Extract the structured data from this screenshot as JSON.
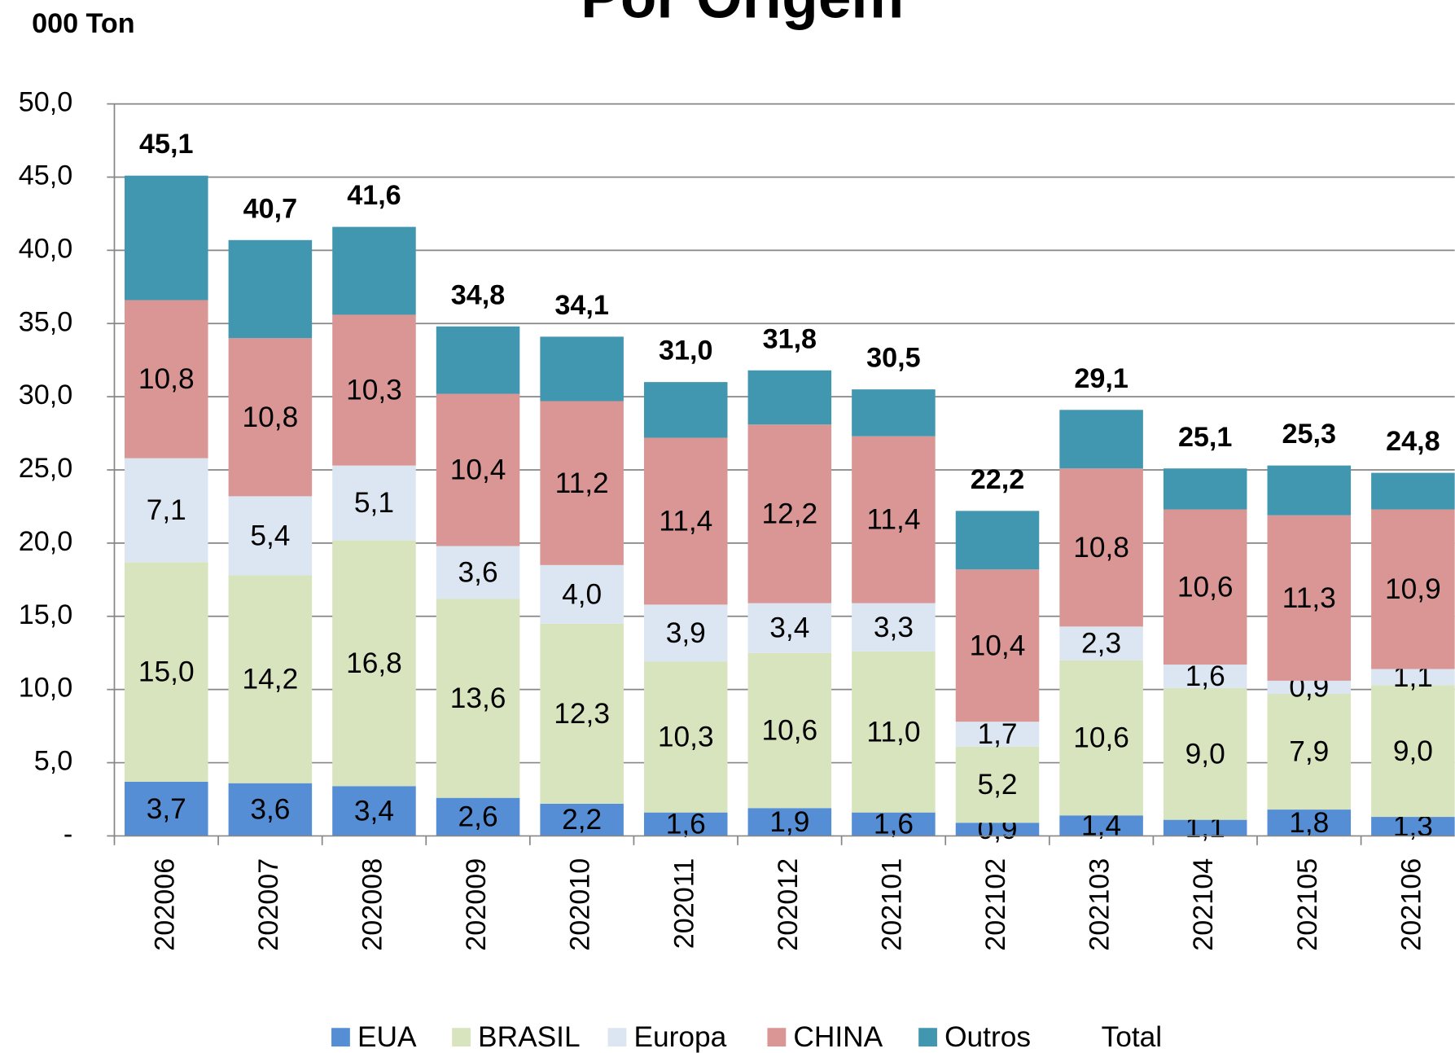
{
  "chart_data": {
    "type": "stacked_bar",
    "title": "Por Origem",
    "y_axis_label": "000  Ton",
    "categories": [
      "202006",
      "202007",
      "202008",
      "202009",
      "202010",
      "202011",
      "202012",
      "202101",
      "202102",
      "202103",
      "202104",
      "202105",
      "202106"
    ],
    "series": [
      {
        "name": "EUA",
        "color": "#558ed5",
        "values": [
          3.7,
          3.6,
          3.4,
          2.6,
          2.2,
          1.6,
          1.9,
          1.6,
          0.9,
          1.4,
          1.1,
          1.8,
          1.3
        ],
        "value_labels": [
          "3,7",
          "3,6",
          "3,4",
          "2,6",
          "2,2",
          "1,6",
          "1,9",
          "1,6",
          "0,9",
          "1,4",
          "1,1",
          "1,8",
          "1,3"
        ]
      },
      {
        "name": "BRASIL",
        "color": "#d7e4bd",
        "values": [
          15.0,
          14.2,
          16.8,
          13.6,
          12.3,
          10.3,
          10.6,
          11.0,
          5.2,
          10.6,
          9.0,
          7.9,
          9.0
        ],
        "value_labels": [
          "15,0",
          "14,2",
          "16,8",
          "13,6",
          "12,3",
          "10,3",
          "10,6",
          "11,0",
          "5,2",
          "10,6",
          "9,0",
          "7,9",
          "9,0"
        ]
      },
      {
        "name": "Europa",
        "color": "#dce6f2",
        "values": [
          7.1,
          5.4,
          5.1,
          3.6,
          4.0,
          3.9,
          3.4,
          3.3,
          1.7,
          2.3,
          1.6,
          0.9,
          1.1
        ],
        "value_labels": [
          "7,1",
          "5,4",
          "5,1",
          "3,6",
          "4,0",
          "3,9",
          "3,4",
          "3,3",
          "1,7",
          "2,3",
          "1,6",
          "0,9",
          "1,1"
        ]
      },
      {
        "name": "CHINA",
        "color": "#d99694",
        "values": [
          10.8,
          10.8,
          10.3,
          10.4,
          11.2,
          11.4,
          12.2,
          11.4,
          10.4,
          10.8,
          10.6,
          11.3,
          10.9
        ],
        "value_labels": [
          "10,8",
          "10,8",
          "10,3",
          "10,4",
          "11,2",
          "11,4",
          "12,2",
          "11,4",
          "10,4",
          "10,8",
          "10,6",
          "11,3",
          "10,9"
        ]
      },
      {
        "name": "Outros",
        "color": "#4197b0",
        "values": [
          8.5,
          6.7,
          6.0,
          4.6,
          4.4,
          3.8,
          3.7,
          3.2,
          4.0,
          4.0,
          2.8,
          3.4,
          2.5
        ]
      },
      {
        "name": "Total",
        "values": [
          45.1,
          40.7,
          41.6,
          34.8,
          34.1,
          31.0,
          31.8,
          30.5,
          22.2,
          29.1,
          25.1,
          25.3,
          24.8
        ],
        "value_labels": [
          "45,1",
          "40,7",
          "41,6",
          "34,8",
          "34,1",
          "31,0",
          "31,8",
          "30,5",
          "22,2",
          "29,1",
          "25,1",
          "25,3",
          "24,8"
        ]
      }
    ],
    "ylim": [
      0,
      50
    ],
    "yticks": [
      {
        "value": 0,
        "label": "-"
      },
      {
        "value": 5,
        "label": "5,0"
      },
      {
        "value": 10,
        "label": "10,0"
      },
      {
        "value": 15,
        "label": "15,0"
      },
      {
        "value": 20,
        "label": "20,0"
      },
      {
        "value": 25,
        "label": "25,0"
      },
      {
        "value": 30,
        "label": "30,0"
      },
      {
        "value": 35,
        "label": "35,0"
      },
      {
        "value": 40,
        "label": "40,0"
      },
      {
        "value": 45,
        "label": "45,0"
      },
      {
        "value": 50,
        "label": "50,0"
      }
    ],
    "grid": true,
    "legend": "bottom"
  }
}
